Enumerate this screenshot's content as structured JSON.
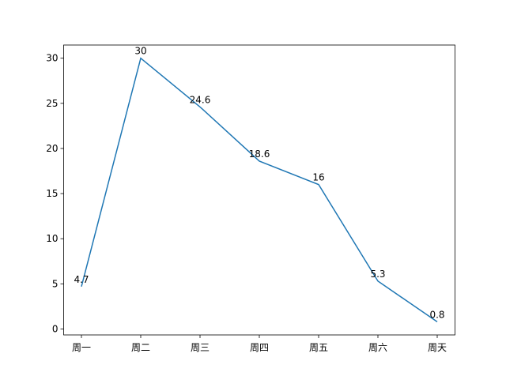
{
  "chart_data": {
    "type": "line",
    "categories": [
      "周一",
      "周二",
      "周三",
      "周四",
      "周五",
      "周六",
      "周天"
    ],
    "values": [
      4.7,
      30,
      24.6,
      18.6,
      16,
      5.3,
      0.8
    ],
    "color": "#1f77b4",
    "ylim": [
      -0.66,
      31.46
    ],
    "yticks": [
      0,
      5,
      10,
      15,
      20,
      25,
      30
    ]
  }
}
